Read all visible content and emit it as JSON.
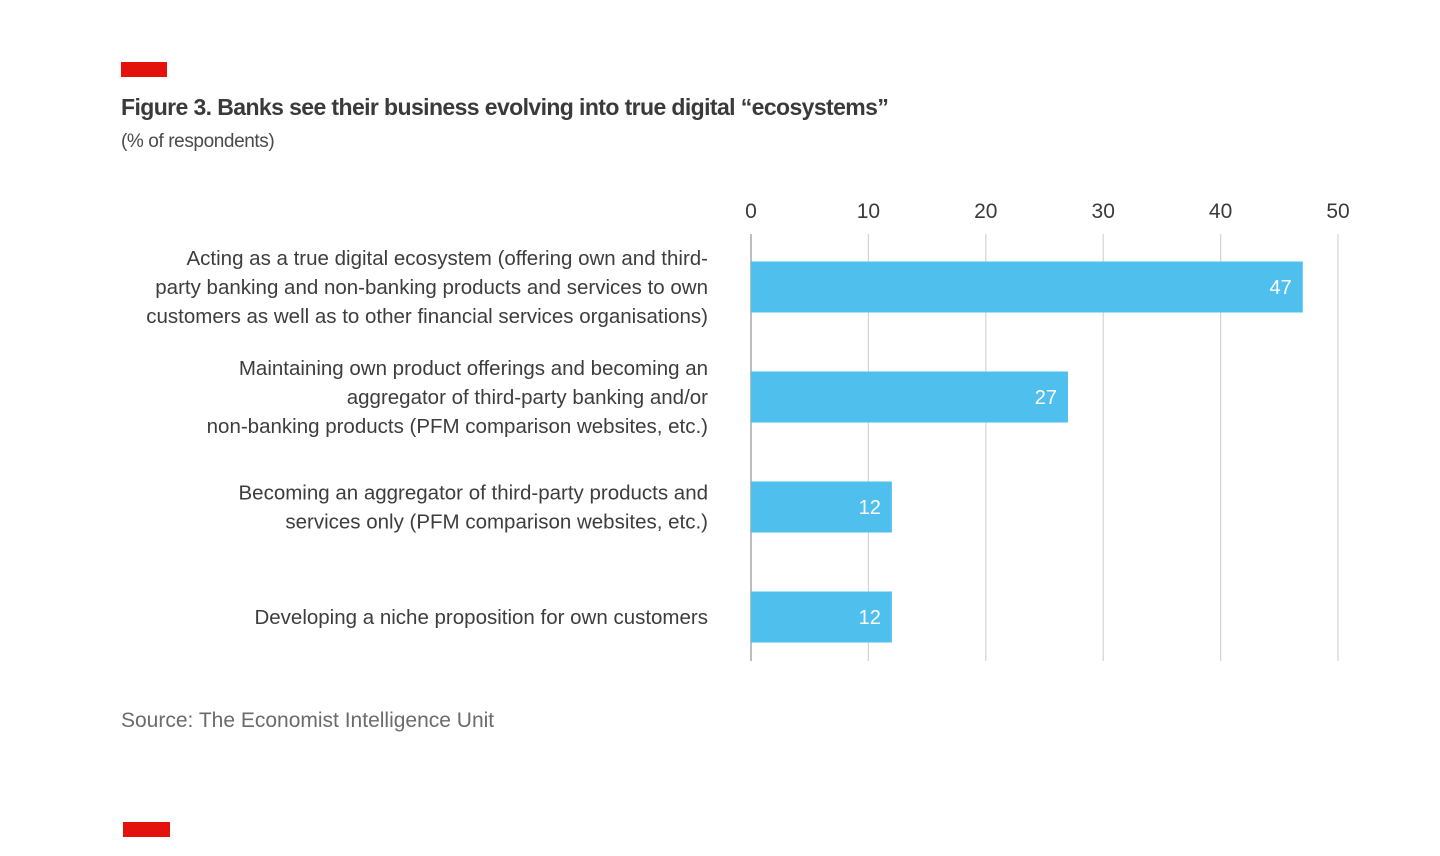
{
  "brand": {
    "accent_color": "#e3120b",
    "bar_color": "#4fc0ee"
  },
  "figure": {
    "title": "Figure 3. Banks see their business evolving into true digital “ecosystems”",
    "subtitle": "(% of respondents)"
  },
  "chart_data": {
    "type": "bar",
    "orientation": "horizontal",
    "title": "Figure 3. Banks see their business evolving into true digital “ecosystems”",
    "ylabel": "(% of respondents)",
    "xlabel": "",
    "xlim": [
      0,
      50
    ],
    "ticks": [
      0,
      10,
      20,
      30,
      40,
      50
    ],
    "grid": true,
    "categories": [
      {
        "label_lines": [
          "Acting as a true digital ecosystem (offering own and third-",
          "party banking and non-banking products and services to own",
          "customers as well as to other financial services organisations)"
        ],
        "value": 47
      },
      {
        "label_lines": [
          "Maintaining own product offerings and becoming an",
          "aggregator of third-party banking and/or",
          "non-banking products (PFM comparison websites, etc.)"
        ],
        "value": 27
      },
      {
        "label_lines": [
          "Becoming an aggregator of third-party products and",
          "services only (PFM comparison websites, etc.)"
        ],
        "value": 12
      },
      {
        "label_lines": [
          "Developing a niche proposition for own customers"
        ],
        "value": 12
      }
    ]
  },
  "source": {
    "text": "Source: The Economist Intelligence Unit"
  }
}
